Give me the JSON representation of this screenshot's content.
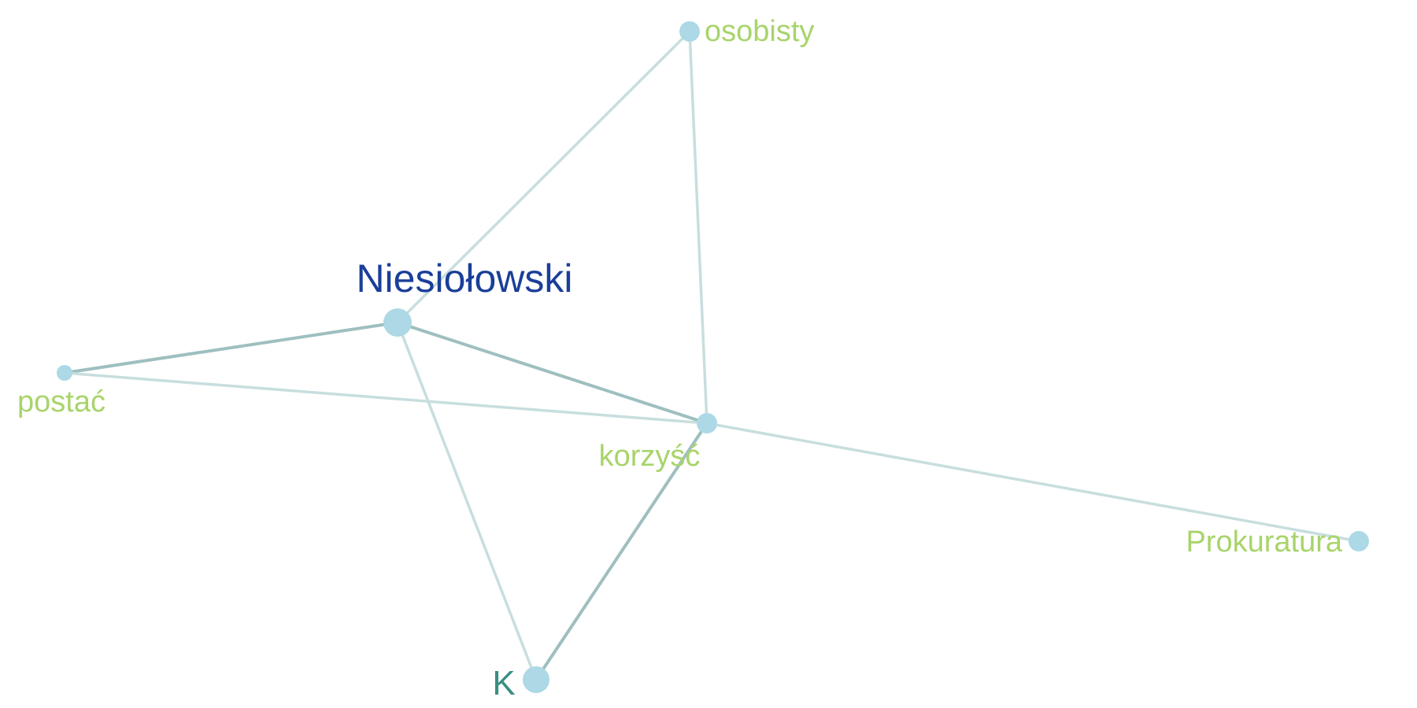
{
  "graph": {
    "colors": {
      "node_fill": "#add8e6",
      "edge_strong": "#9fbfbf",
      "edge_light": "#c8dede",
      "label_primary": "#1a3f99",
      "label_secondary": "#a8d46b",
      "label_tertiary": "#3a8f82"
    },
    "nodes": [
      {
        "id": "niesiolowski",
        "label": "Niesiołowski",
        "importance": "primary"
      },
      {
        "id": "osobisty",
        "label": "osobisty",
        "importance": "secondary"
      },
      {
        "id": "postac",
        "label": "postać",
        "importance": "secondary"
      },
      {
        "id": "korzysc",
        "label": "korzyść",
        "importance": "secondary"
      },
      {
        "id": "prokuratura",
        "label": "Prokuratura",
        "importance": "secondary"
      },
      {
        "id": "k",
        "label": "K",
        "importance": "tertiary"
      }
    ],
    "edges": [
      {
        "source": "niesiolowski",
        "target": "osobisty",
        "strength": "light"
      },
      {
        "source": "osobisty",
        "target": "korzysc",
        "strength": "light"
      },
      {
        "source": "niesiolowski",
        "target": "postac",
        "strength": "strong"
      },
      {
        "source": "niesiolowski",
        "target": "korzysc",
        "strength": "strong"
      },
      {
        "source": "niesiolowski",
        "target": "k",
        "strength": "light"
      },
      {
        "source": "postac",
        "target": "korzysc",
        "strength": "light"
      },
      {
        "source": "korzysc",
        "target": "prokuratura",
        "strength": "light"
      },
      {
        "source": "korzysc",
        "target": "k",
        "strength": "strong"
      }
    ]
  }
}
